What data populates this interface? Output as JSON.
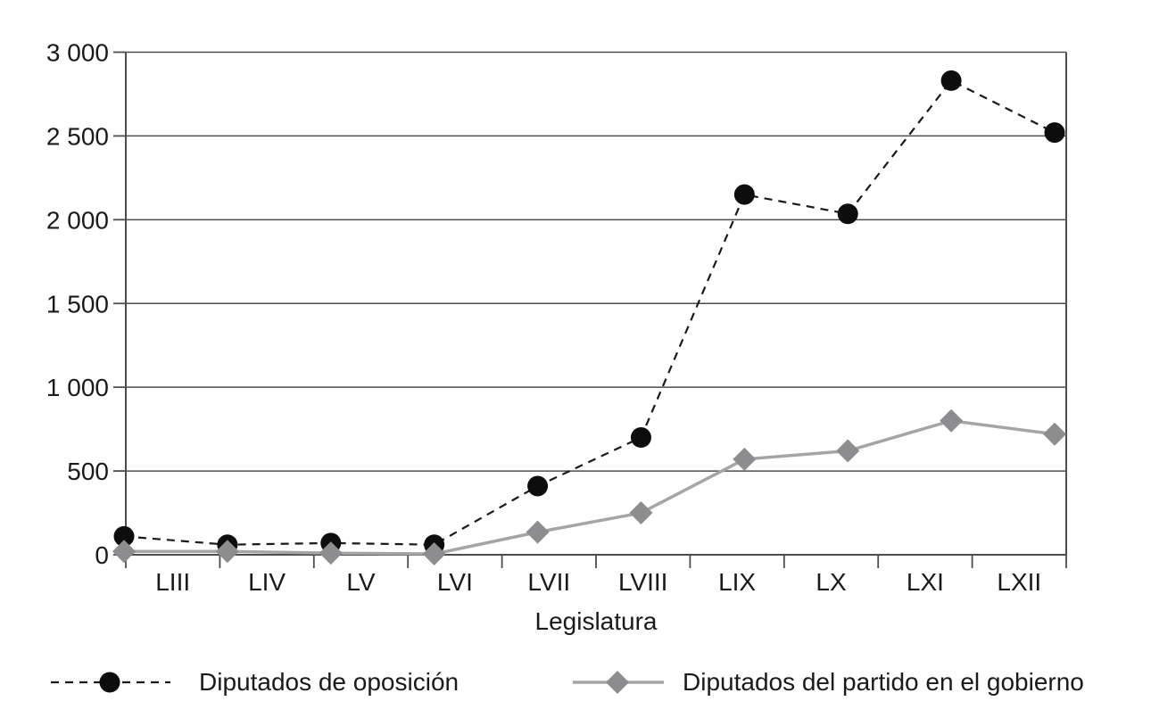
{
  "page": {
    "background_color": "#ffffff"
  },
  "chart_data": {
    "type": "line",
    "title": "",
    "xlabel": "Legislatura",
    "ylabel": "",
    "categories": [
      "LIII",
      "LIV",
      "LV",
      "LVI",
      "LVII",
      "LVIII",
      "LIX",
      "LX",
      "LXI",
      "LXII"
    ],
    "series": [
      {
        "name": "Diputados de oposición",
        "marker": "circle",
        "line_style": "dashed",
        "marker_color": "#0d0d0d",
        "line_color": "#1a1a1a",
        "values": [
          110,
          60,
          70,
          60,
          410,
          700,
          2150,
          2035,
          2830,
          2520
        ]
      },
      {
        "name": "Diputados del partido en el gobierno",
        "marker": "diamond",
        "line_style": "solid",
        "marker_color": "#8d8d90",
        "line_color": "#a5a5a7",
        "values": [
          20,
          20,
          10,
          5,
          135,
          250,
          570,
          620,
          800,
          720
        ]
      }
    ],
    "ylim": [
      0,
      3000
    ],
    "ytick_step": 500,
    "ytick_labels": [
      "0",
      "500",
      "1 000",
      "1 500",
      "2 000",
      "2 500",
      "3 000"
    ],
    "grid": true,
    "legend_position": "bottom",
    "axis_color": "#4d4d4d",
    "text_color": "#1a1a1a"
  }
}
